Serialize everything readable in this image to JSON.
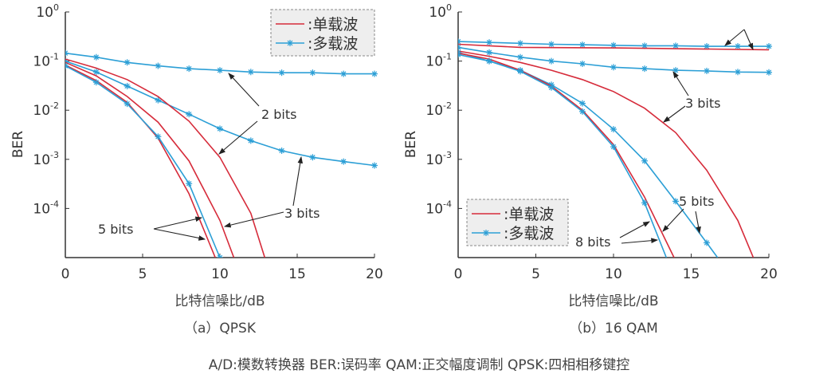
{
  "colors": {
    "single_carrier": "#d62b3a",
    "multi_carrier": "#2c9fd6",
    "axis": "#333333",
    "arrow": "#222222"
  },
  "footnote": "A/D:模数转换器    BER:误码率    QAM:正交幅度调制    QPSK:四相相移键控",
  "chart_data": [
    {
      "type": "line",
      "caption": "（a）QPSK",
      "xlabel": "比特信噪比/dB",
      "ylabel": "BER",
      "xlim": [
        0,
        20
      ],
      "ylim": [
        1e-05,
        1
      ],
      "yscale": "log",
      "xticks": [
        "0",
        "5",
        "10",
        "15",
        "20"
      ],
      "yticks": [
        {
          "base": "10",
          "exp": "0"
        },
        {
          "base": "10",
          "exp": "-1"
        },
        {
          "base": "10",
          "exp": "-2"
        },
        {
          "base": "10",
          "exp": "-3"
        },
        {
          "base": "10",
          "exp": "-4"
        }
      ],
      "legend": {
        "placement": "top-right",
        "entries": [
          ":单载波",
          ":多载波"
        ]
      },
      "annotations": [
        "2 bits",
        "3 bits",
        "5 bits"
      ],
      "series": [
        {
          "name": "多载波",
          "resolution": "2 bits",
          "marker": true,
          "x": [
            0,
            2,
            4,
            6,
            8,
            10,
            12,
            14,
            16,
            18,
            20
          ],
          "y": [
            0.145,
            0.12,
            0.094,
            0.08,
            0.07,
            0.065,
            0.06,
            0.058,
            0.058,
            0.055,
            0.055
          ]
        },
        {
          "name": "多载波",
          "resolution": "3 bits",
          "marker": true,
          "x": [
            0,
            2,
            4,
            6,
            8,
            10,
            12,
            14,
            16,
            18,
            20
          ],
          "y": [
            0.1,
            0.06,
            0.031,
            0.016,
            0.0083,
            0.0042,
            0.0024,
            0.0015,
            0.0011,
            0.0009,
            0.00075
          ]
        },
        {
          "name": "单载波",
          "resolution": "2 bits",
          "marker": false,
          "x": [
            0,
            2,
            4,
            6,
            8,
            10,
            12,
            12.9
          ],
          "y": [
            0.11,
            0.072,
            0.042,
            0.019,
            0.006,
            0.0011,
            8e-05,
            1e-05
          ]
        },
        {
          "name": "单载波",
          "resolution": "3 bits",
          "marker": false,
          "x": [
            0,
            2,
            4,
            6,
            8,
            10,
            10.9
          ],
          "y": [
            0.094,
            0.05,
            0.019,
            0.0057,
            0.00093,
            5.7e-05,
            1e-05
          ]
        },
        {
          "name": "单载波",
          "resolution": "5 bits",
          "marker": false,
          "x": [
            0,
            2,
            4,
            6,
            8,
            9.7
          ],
          "y": [
            0.083,
            0.04,
            0.0145,
            0.0027,
            0.0002,
            1e-05
          ]
        },
        {
          "name": "多载波",
          "resolution": "5 bits",
          "marker": true,
          "x": [
            0,
            2,
            4,
            6,
            8,
            10
          ],
          "y": [
            0.08,
            0.037,
            0.0135,
            0.0029,
            0.00032,
            1e-05
          ]
        }
      ]
    },
    {
      "type": "line",
      "caption": "（b）16 QAM",
      "xlabel": "比特信噪比/dB",
      "ylabel": "BER",
      "xlim": [
        0,
        20
      ],
      "ylim": [
        1e-05,
        1
      ],
      "yscale": "log",
      "xticks": [
        "0",
        "5",
        "10",
        "15",
        "20"
      ],
      "yticks": [
        {
          "base": "10",
          "exp": "0"
        },
        {
          "base": "10",
          "exp": "-1"
        },
        {
          "base": "10",
          "exp": "-2"
        },
        {
          "base": "10",
          "exp": "-3"
        },
        {
          "base": "10",
          "exp": "-4"
        }
      ],
      "legend": {
        "placement": "bottom-left",
        "entries": [
          ":单载波",
          ":多载波"
        ]
      },
      "annotations": [
        "3 bits",
        "5 bits",
        "8 bits"
      ],
      "series": [
        {
          "name": "多载波",
          "resolution": "2 bits",
          "marker": true,
          "x": [
            0,
            2,
            4,
            6,
            8,
            10,
            12,
            14,
            16,
            18,
            20
          ],
          "y": [
            0.25,
            0.24,
            0.23,
            0.22,
            0.215,
            0.21,
            0.205,
            0.205,
            0.2,
            0.2,
            0.2
          ]
        },
        {
          "name": "单载波",
          "resolution": "2 bits",
          "marker": false,
          "x": [
            0,
            4,
            10,
            20
          ],
          "y": [
            0.22,
            0.19,
            0.185,
            0.17
          ]
        },
        {
          "name": "多载波",
          "resolution": "3 bits",
          "marker": true,
          "x": [
            0,
            2,
            4,
            6,
            8,
            10,
            12,
            14,
            16,
            18,
            20
          ],
          "y": [
            0.19,
            0.15,
            0.12,
            0.1,
            0.088,
            0.075,
            0.07,
            0.065,
            0.063,
            0.06,
            0.059
          ]
        },
        {
          "name": "单载波",
          "resolution": "3 bits",
          "marker": false,
          "x": [
            0,
            2,
            4,
            6,
            8,
            10,
            12,
            14,
            16,
            18,
            19
          ],
          "y": [
            0.16,
            0.125,
            0.094,
            0.065,
            0.042,
            0.024,
            0.011,
            0.0035,
            0.0006,
            5.7e-05,
            1e-05
          ]
        },
        {
          "name": "多载波",
          "resolution": "5 bits",
          "marker": true,
          "x": [
            0,
            2,
            4,
            6,
            8,
            10,
            12,
            14,
            16,
            16.7
          ],
          "y": [
            0.15,
            0.1,
            0.065,
            0.033,
            0.0138,
            0.0041,
            0.00093,
            0.00014,
            2e-05,
            1e-05
          ]
        },
        {
          "name": "单载波",
          "resolution": "8 bits",
          "marker": false,
          "x": [
            0,
            2,
            4,
            6,
            8,
            10,
            12,
            13.9
          ],
          "y": [
            0.145,
            0.11,
            0.065,
            0.031,
            0.01,
            0.002,
            0.00017,
            1e-05
          ]
        },
        {
          "name": "多载波",
          "resolution": "8 bits",
          "marker": true,
          "x": [
            0,
            2,
            4,
            6,
            8,
            10,
            12,
            13.4
          ],
          "y": [
            0.136,
            0.1,
            0.062,
            0.029,
            0.0094,
            0.0018,
            0.00013,
            1e-05
          ]
        }
      ]
    }
  ]
}
